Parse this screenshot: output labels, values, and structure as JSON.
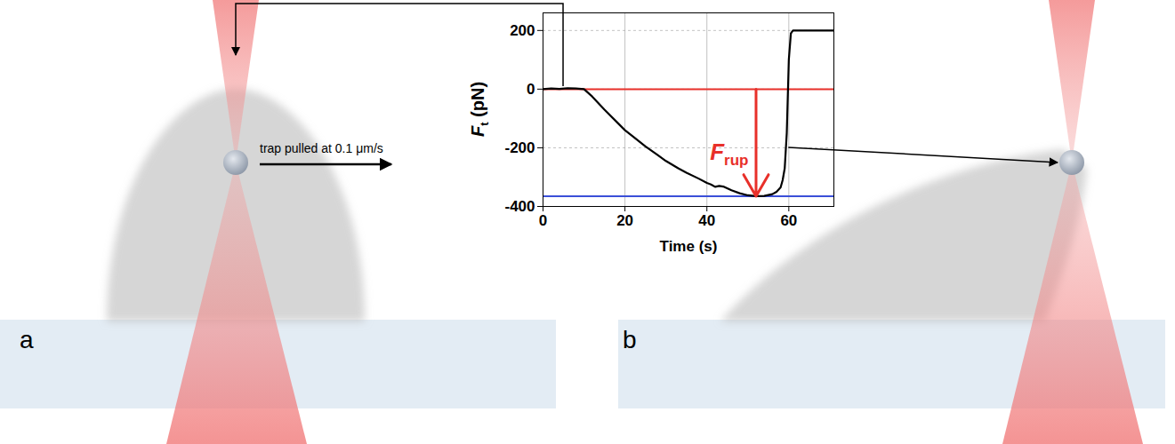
{
  "chart_data": {
    "type": "line",
    "xlabel": "Time (s)",
    "ylabel": {
      "symbol": "F",
      "subscript": "t",
      "unit": "(pN)"
    },
    "x": [
      0,
      2,
      4,
      6,
      8,
      10,
      12,
      15,
      18,
      20,
      22,
      25,
      28,
      30,
      33,
      35,
      38,
      40,
      41,
      42,
      43,
      44,
      46,
      48,
      50,
      52,
      54,
      56,
      57,
      58,
      58.5,
      59,
      59.5,
      60,
      60.5,
      61,
      65,
      71
    ],
    "values": [
      0,
      2,
      1,
      3,
      2,
      0,
      -25,
      -70,
      -112,
      -140,
      -162,
      -195,
      -225,
      -245,
      -270,
      -285,
      -305,
      -320,
      -325,
      -333,
      -330,
      -332,
      -345,
      -355,
      -362,
      -365,
      -364,
      -358,
      -350,
      -335,
      -310,
      -270,
      -150,
      100,
      190,
      200,
      200,
      200
    ],
    "color": "#000000",
    "xlim": [
      0,
      71
    ],
    "ylim": [
      -400,
      260
    ],
    "xticks": [
      0,
      20,
      40,
      60
    ],
    "yticks": [
      -400,
      -200,
      0,
      200
    ],
    "grid": true,
    "reference_lines": [
      {
        "value": 0,
        "color": "#e8302a"
      },
      {
        "value": -365,
        "color": "#3b4fd8"
      }
    ],
    "rupture": {
      "time": 52,
      "from": 0,
      "to": -365,
      "color": "#e8302a",
      "label": {
        "symbol": "F",
        "subscript": "rup"
      }
    },
    "links": [
      {
        "panel": "a",
        "time": 5,
        "force": 0
      },
      {
        "panel": "b",
        "time": 60,
        "force": -200
      }
    ]
  },
  "diagram": {
    "panels": [
      {
        "letter": "a",
        "annotation": "trap pulled at 0.1 μm/s"
      },
      {
        "letter": "b"
      }
    ]
  }
}
